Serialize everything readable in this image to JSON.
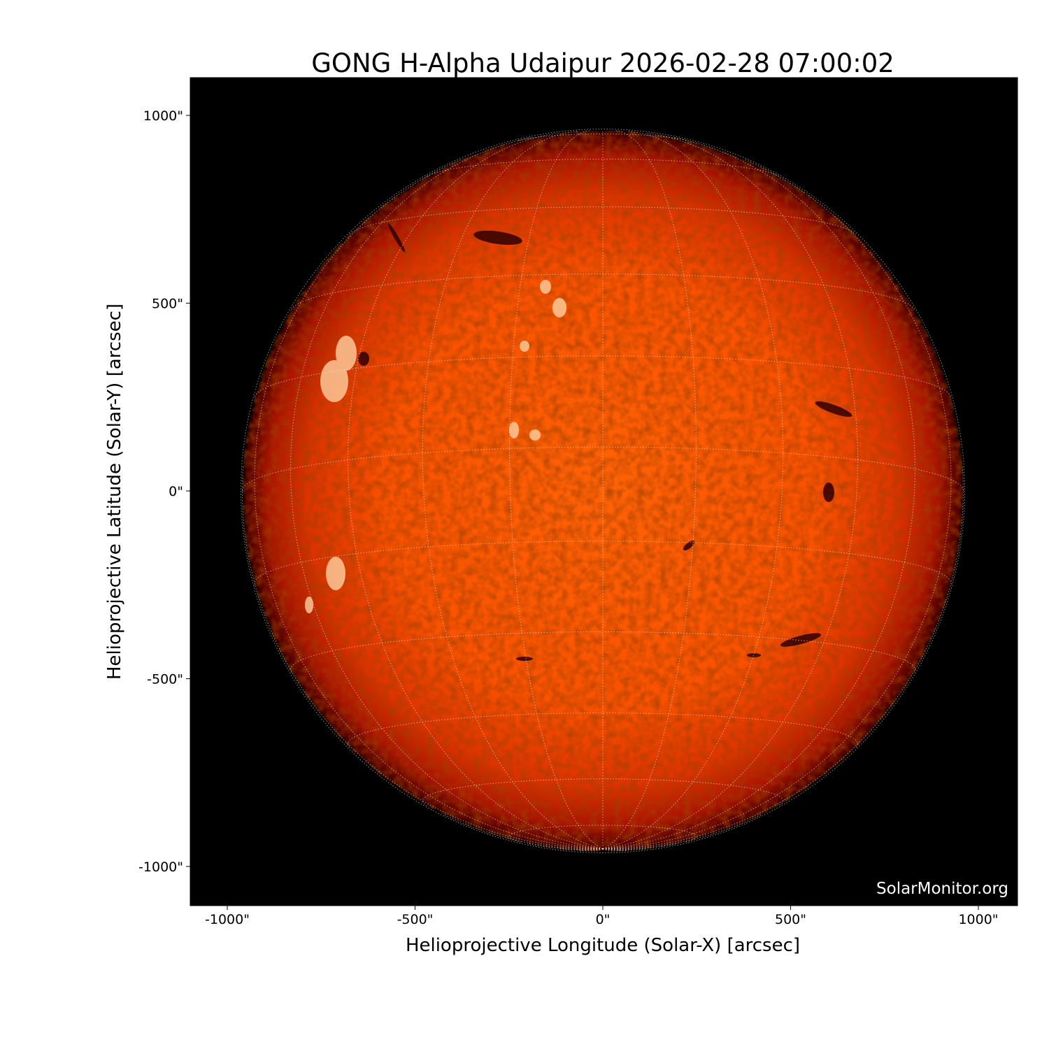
{
  "chart_data": {
    "type": "heatmap",
    "title": "GONG H-Alpha Udaipur 2026-02-28 07:00:02",
    "xlabel": "Helioprojective Longitude (Solar-X) [arcsec]",
    "ylabel": "Helioprojective Latitude (Solar-Y) [arcsec]",
    "xlim": [
      -1100,
      1100
    ],
    "ylim": [
      -1100,
      1100
    ],
    "xticks": [
      -1000,
      -500,
      0,
      500,
      1000
    ],
    "yticks": [
      -1000,
      -500,
      0,
      500,
      1000
    ],
    "xtick_labels": [
      "-1000\"",
      "-500\"",
      "0\"",
      "500\"",
      "1000\""
    ],
    "ytick_labels": [
      "-1000\"",
      "-500\"",
      "0\"",
      "500\"",
      "1000\""
    ],
    "solar_radius_arcsec": 960,
    "grid": true,
    "grid_spacing_deg": 15,
    "colormap": "red-orange H-alpha",
    "colors": {
      "background": "#000000",
      "disk_center": "#ff5f05",
      "disk_limb": "#7a0000",
      "grid": "#ffffff"
    }
  },
  "watermark": "SolarMonitor.org"
}
